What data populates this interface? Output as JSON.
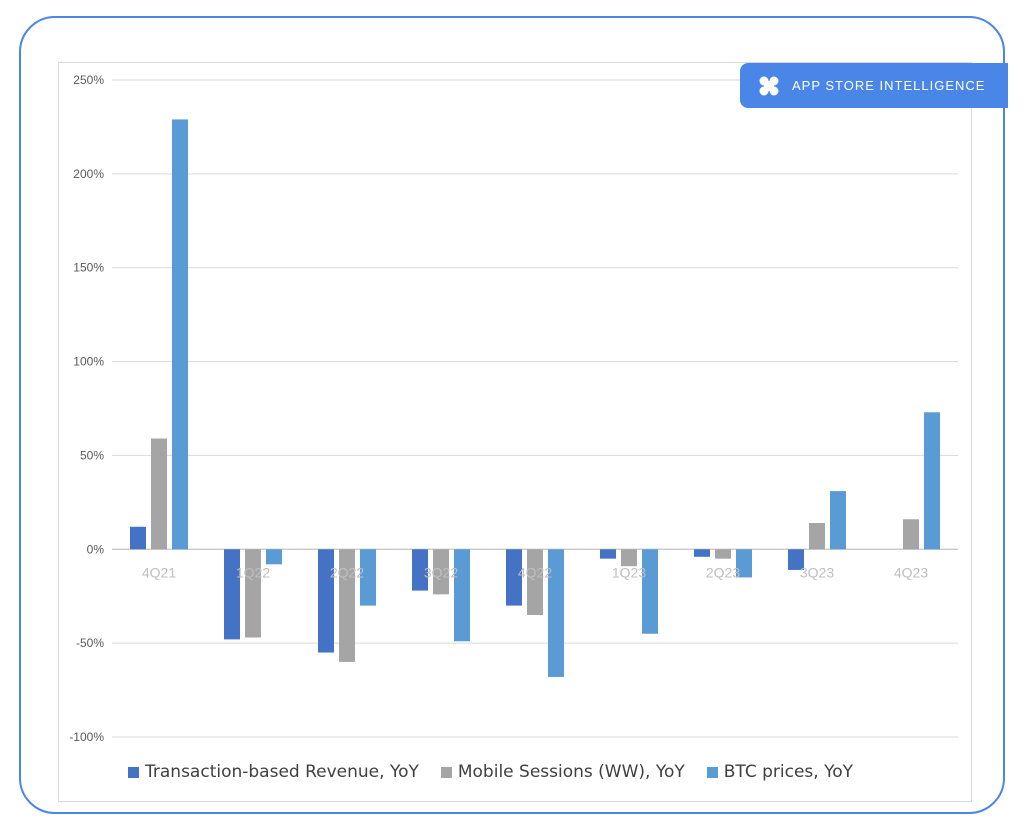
{
  "badge": {
    "text": "APP STORE INTELLIGENCE",
    "icon": "clover-icon"
  },
  "colors": {
    "frame": "#4a86e8",
    "badge": "#4a86e8"
  },
  "chart_data": {
    "type": "bar",
    "title": "",
    "xlabel": "",
    "ylabel": "",
    "categories": [
      "4Q21",
      "1Q22",
      "2Q22",
      "3Q22",
      "4Q22",
      "1Q23",
      "2Q23",
      "3Q23",
      "4Q23"
    ],
    "series": [
      {
        "name": "Transaction-based Revenue, YoY",
        "color": "#4472c4",
        "values": [
          12,
          -48,
          -55,
          -22,
          -30,
          -5,
          -4,
          -11,
          null
        ]
      },
      {
        "name": "Mobile Sessions (WW), YoY",
        "color": "#a5a5a5",
        "values": [
          59,
          -47,
          -60,
          -24,
          -35,
          -9,
          -5,
          14,
          16
        ]
      },
      {
        "name": "BTC prices, YoY",
        "color": "#5b9bd5",
        "values": [
          229,
          -8,
          -30,
          -49,
          -68,
          -45,
          -15,
          31,
          73
        ]
      }
    ],
    "ylim": [
      -100,
      250
    ],
    "yticks": [
      -100,
      -50,
      0,
      50,
      100,
      150,
      200,
      250
    ],
    "ytick_labels": [
      "-100%",
      "-50%",
      "0%",
      "50%",
      "100%",
      "150%",
      "200%",
      "250%"
    ],
    "grid": true,
    "legend_position": "bottom"
  }
}
